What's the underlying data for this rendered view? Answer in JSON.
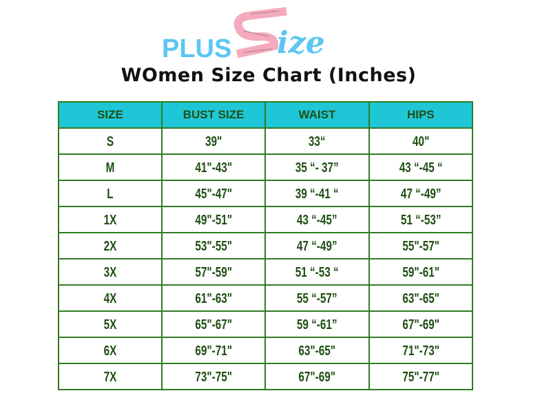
{
  "logo": {
    "text_plus": "PLUS",
    "text_s": "S",
    "text_ize": "ize",
    "colors": {
      "blue": "#5cc6f2",
      "pink": "#f5a9bd"
    }
  },
  "title": "WOmen Size Chart (Inches)",
  "table": {
    "headers": [
      "SIZE",
      "BUST SIZE",
      "WAIST",
      "HIPS"
    ],
    "rows": [
      [
        "S",
        "39\"",
        "33“",
        "40\""
      ],
      [
        "M",
        "41\"-43\"",
        "35 “- 37”",
        "43 “-45 “"
      ],
      [
        "L",
        "45\"-47\"",
        "39 “-41 “",
        "47 “-49”"
      ],
      [
        "1X",
        "49\"-51\"",
        "43 “-45”",
        "51 “-53”"
      ],
      [
        "2X",
        "53\"-55\"",
        "47 “-49”",
        "55\"-57\""
      ],
      [
        "3X",
        "57\"-59\"",
        "51 “-53 “",
        "59\"-61\""
      ],
      [
        "4X",
        "61\"-63\"",
        "55 “-57”",
        "63\"-65\""
      ],
      [
        "5X",
        "65\"-67\"",
        "59 “-61”",
        "67\"-69\""
      ],
      [
        "6X",
        "69\"-71\"",
        "63\"-65\"",
        "71\"-73\""
      ],
      [
        "7X",
        "73\"-75\"",
        "67\"-69\"",
        "75\"-77\""
      ]
    ]
  }
}
